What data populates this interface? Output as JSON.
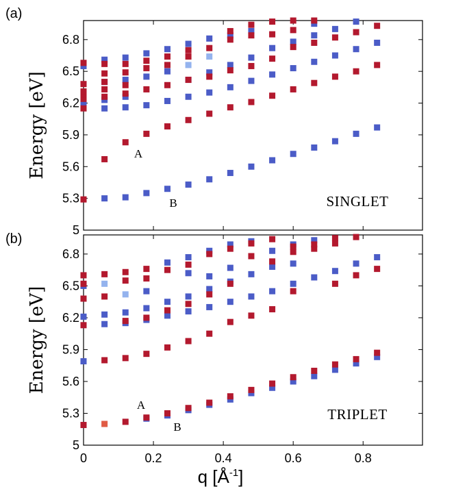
{
  "chart_data": [
    {
      "type": "scatter",
      "panel_tag": "(a)",
      "ylabel": "Energy [eV]",
      "label": "SINGLET",
      "annotations": [
        "A",
        "B"
      ],
      "xlim": [
        0,
        0.97
      ],
      "ylim": [
        5.0,
        6.98
      ],
      "yticks": [
        "5",
        "5.3",
        "5.6",
        "5.9",
        "6.2",
        "6.5",
        "6.8"
      ],
      "colors": {
        "blue": "#4b5cc7",
        "red": "#b3192e",
        "lightblue": "#94b3ee",
        "orange": "#e05b45"
      },
      "points": {
        "red": [
          [
            0,
            5.29
          ],
          [
            0,
            6.15
          ],
          [
            0,
            6.24
          ],
          [
            0,
            6.28
          ],
          [
            0,
            6.31
          ],
          [
            0,
            6.38
          ],
          [
            0,
            6.58
          ],
          [
            0.06,
            5.67
          ],
          [
            0.06,
            6.26
          ],
          [
            0.06,
            6.33
          ],
          [
            0.06,
            6.4
          ],
          [
            0.06,
            6.48
          ],
          [
            0.06,
            6.57
          ],
          [
            0.12,
            5.83
          ],
          [
            0.12,
            6.29
          ],
          [
            0.12,
            6.37
          ],
          [
            0.12,
            6.49
          ],
          [
            0.12,
            6.57
          ],
          [
            0.18,
            5.91
          ],
          [
            0.18,
            6.33
          ],
          [
            0.18,
            6.53
          ],
          [
            0.18,
            6.6
          ],
          [
            0.24,
            5.98
          ],
          [
            0.24,
            6.37
          ],
          [
            0.24,
            6.56
          ],
          [
            0.24,
            6.64
          ],
          [
            0.3,
            6.04
          ],
          [
            0.3,
            6.42
          ],
          [
            0.3,
            6.64
          ],
          [
            0.3,
            6.7
          ],
          [
            0.36,
            6.1
          ],
          [
            0.36,
            6.45
          ],
          [
            0.36,
            6.72
          ],
          [
            0.42,
            6.16
          ],
          [
            0.42,
            6.51
          ],
          [
            0.42,
            6.8
          ],
          [
            0.42,
            6.88
          ],
          [
            0.48,
            6.21
          ],
          [
            0.48,
            6.55
          ],
          [
            0.48,
            6.84
          ],
          [
            0.48,
            6.94
          ],
          [
            0.54,
            6.27
          ],
          [
            0.54,
            6.62
          ],
          [
            0.54,
            6.85
          ],
          [
            0.54,
            6.97
          ],
          [
            0.6,
            6.33
          ],
          [
            0.6,
            6.73
          ],
          [
            0.6,
            6.89
          ],
          [
            0.6,
            6.98
          ],
          [
            0.66,
            6.39
          ],
          [
            0.66,
            6.77
          ],
          [
            0.66,
            6.98
          ],
          [
            0.72,
            6.45
          ],
          [
            0.72,
            6.82
          ],
          [
            0.78,
            6.5
          ],
          [
            0.78,
            6.87
          ],
          [
            0.84,
            6.56
          ],
          [
            0.84,
            6.93
          ]
        ],
        "blue": [
          [
            0,
            6.2
          ],
          [
            0,
            6.3
          ],
          [
            0,
            6.55
          ],
          [
            0.06,
            5.3
          ],
          [
            0.06,
            6.15
          ],
          [
            0.06,
            6.23
          ],
          [
            0.06,
            6.4
          ],
          [
            0.06,
            6.61
          ],
          [
            0.12,
            5.31
          ],
          [
            0.12,
            6.16
          ],
          [
            0.12,
            6.26
          ],
          [
            0.12,
            6.42
          ],
          [
            0.12,
            6.63
          ],
          [
            0.18,
            5.35
          ],
          [
            0.18,
            6.18
          ],
          [
            0.18,
            6.45
          ],
          [
            0.18,
            6.67
          ],
          [
            0.24,
            5.39
          ],
          [
            0.24,
            6.22
          ],
          [
            0.24,
            6.5
          ],
          [
            0.24,
            6.71
          ],
          [
            0.3,
            5.43
          ],
          [
            0.3,
            6.26
          ],
          [
            0.3,
            6.42
          ],
          [
            0.3,
            6.76
          ],
          [
            0.36,
            5.48
          ],
          [
            0.36,
            6.3
          ],
          [
            0.36,
            6.49
          ],
          [
            0.36,
            6.81
          ],
          [
            0.42,
            5.54
          ],
          [
            0.42,
            6.35
          ],
          [
            0.42,
            6.56
          ],
          [
            0.42,
            6.84
          ],
          [
            0.48,
            5.6
          ],
          [
            0.48,
            6.41
          ],
          [
            0.48,
            6.63
          ],
          [
            0.48,
            6.88
          ],
          [
            0.54,
            5.66
          ],
          [
            0.54,
            6.47
          ],
          [
            0.54,
            6.72
          ],
          [
            0.6,
            5.72
          ],
          [
            0.6,
            6.53
          ],
          [
            0.6,
            6.78
          ],
          [
            0.66,
            5.78
          ],
          [
            0.66,
            6.59
          ],
          [
            0.66,
            6.84
          ],
          [
            0.66,
            6.95
          ],
          [
            0.72,
            5.84
          ],
          [
            0.72,
            6.65
          ],
          [
            0.72,
            6.9
          ],
          [
            0.78,
            5.91
          ],
          [
            0.78,
            6.71
          ],
          [
            0.78,
            6.97
          ],
          [
            0.84,
            5.97
          ],
          [
            0.84,
            6.77
          ]
        ],
        "lightblue": [
          [
            0.3,
            6.56
          ],
          [
            0.36,
            6.64
          ]
        ],
        "orange": []
      }
    },
    {
      "type": "scatter",
      "panel_tag": "(b)",
      "ylabel": "Energy [eV]",
      "xlabel": "q [Å",
      "xlabel_sup": "-1",
      "xlabel_end": "]",
      "label": "TRIPLET",
      "annotations": [
        "A",
        "B"
      ],
      "xlim": [
        0,
        0.97
      ],
      "ylim": [
        5.0,
        6.98
      ],
      "yticks": [
        "5",
        "5.3",
        "5.6",
        "5.9",
        "6.2",
        "6.5",
        "6.8"
      ],
      "xticks": [
        "0",
        "0.2",
        "0.4",
        "0.6",
        "0.8"
      ],
      "xtick_values": [
        0,
        0.2,
        0.4,
        0.6,
        0.8
      ],
      "points": {
        "red": [
          [
            0,
            5.19
          ],
          [
            0,
            6.13
          ],
          [
            0,
            6.38
          ],
          [
            0,
            6.52
          ],
          [
            0,
            6.6
          ],
          [
            0.06,
            5.8
          ],
          [
            0.06,
            6.4
          ],
          [
            0.06,
            6.61
          ],
          [
            0.12,
            5.22
          ],
          [
            0.12,
            5.82
          ],
          [
            0.12,
            6.17
          ],
          [
            0.12,
            6.55
          ],
          [
            0.12,
            6.63
          ],
          [
            0.18,
            5.26
          ],
          [
            0.18,
            5.86
          ],
          [
            0.18,
            6.2
          ],
          [
            0.18,
            6.57
          ],
          [
            0.18,
            6.66
          ],
          [
            0.24,
            5.3
          ],
          [
            0.24,
            5.92
          ],
          [
            0.24,
            6.27
          ],
          [
            0.24,
            6.65
          ],
          [
            0.3,
            5.35
          ],
          [
            0.3,
            5.98
          ],
          [
            0.3,
            6.33
          ],
          [
            0.3,
            6.7
          ],
          [
            0.36,
            5.4
          ],
          [
            0.36,
            6.05
          ],
          [
            0.36,
            6.42
          ],
          [
            0.36,
            6.8
          ],
          [
            0.42,
            5.46
          ],
          [
            0.42,
            6.16
          ],
          [
            0.42,
            6.52
          ],
          [
            0.42,
            6.85
          ],
          [
            0.48,
            5.52
          ],
          [
            0.48,
            6.22
          ],
          [
            0.48,
            6.78
          ],
          [
            0.48,
            6.9
          ],
          [
            0.54,
            5.58
          ],
          [
            0.54,
            6.28
          ],
          [
            0.54,
            6.73
          ],
          [
            0.54,
            6.94
          ],
          [
            0.6,
            5.64
          ],
          [
            0.6,
            6.45
          ],
          [
            0.6,
            6.82
          ],
          [
            0.6,
            6.87
          ],
          [
            0.66,
            5.7
          ],
          [
            0.66,
            6.85
          ],
          [
            0.66,
            6.89
          ],
          [
            0.72,
            5.76
          ],
          [
            0.72,
            6.52
          ],
          [
            0.72,
            6.9
          ],
          [
            0.72,
            6.95
          ],
          [
            0.78,
            5.81
          ],
          [
            0.78,
            6.6
          ],
          [
            0.78,
            6.96
          ],
          [
            0.84,
            5.87
          ],
          [
            0.84,
            6.66
          ]
        ],
        "blue": [
          [
            0,
            5.79
          ],
          [
            0,
            6.21
          ],
          [
            0,
            6.5
          ],
          [
            0.06,
            6.14
          ],
          [
            0.06,
            6.23
          ],
          [
            0.12,
            6.15
          ],
          [
            0.12,
            6.25
          ],
          [
            0.18,
            5.25
          ],
          [
            0.18,
            6.18
          ],
          [
            0.18,
            6.29
          ],
          [
            0.18,
            6.45
          ],
          [
            0.24,
            5.28
          ],
          [
            0.24,
            6.22
          ],
          [
            0.24,
            6.35
          ],
          [
            0.24,
            6.72
          ],
          [
            0.3,
            5.33
          ],
          [
            0.3,
            6.26
          ],
          [
            0.3,
            6.4
          ],
          [
            0.3,
            6.62
          ],
          [
            0.3,
            6.77
          ],
          [
            0.36,
            5.38
          ],
          [
            0.36,
            6.3
          ],
          [
            0.36,
            6.47
          ],
          [
            0.36,
            6.59
          ],
          [
            0.36,
            6.83
          ],
          [
            0.42,
            5.43
          ],
          [
            0.42,
            6.35
          ],
          [
            0.42,
            6.54
          ],
          [
            0.42,
            6.67
          ],
          [
            0.42,
            6.89
          ],
          [
            0.48,
            5.49
          ],
          [
            0.48,
            6.4
          ],
          [
            0.48,
            6.61
          ],
          [
            0.48,
            6.92
          ],
          [
            0.54,
            5.54
          ],
          [
            0.54,
            6.45
          ],
          [
            0.54,
            6.68
          ],
          [
            0.54,
            6.83
          ],
          [
            0.6,
            5.6
          ],
          [
            0.6,
            6.52
          ],
          [
            0.6,
            6.71
          ],
          [
            0.6,
            6.89
          ],
          [
            0.66,
            5.65
          ],
          [
            0.66,
            6.58
          ],
          [
            0.66,
            6.93
          ],
          [
            0.72,
            5.71
          ],
          [
            0.72,
            6.64
          ],
          [
            0.78,
            5.77
          ],
          [
            0.78,
            6.71
          ],
          [
            0.84,
            5.83
          ],
          [
            0.84,
            6.77
          ]
        ],
        "lightblue": [
          [
            0.06,
            6.52
          ],
          [
            0.12,
            6.42
          ]
        ],
        "orange": [
          [
            0.06,
            5.2
          ]
        ]
      }
    }
  ]
}
